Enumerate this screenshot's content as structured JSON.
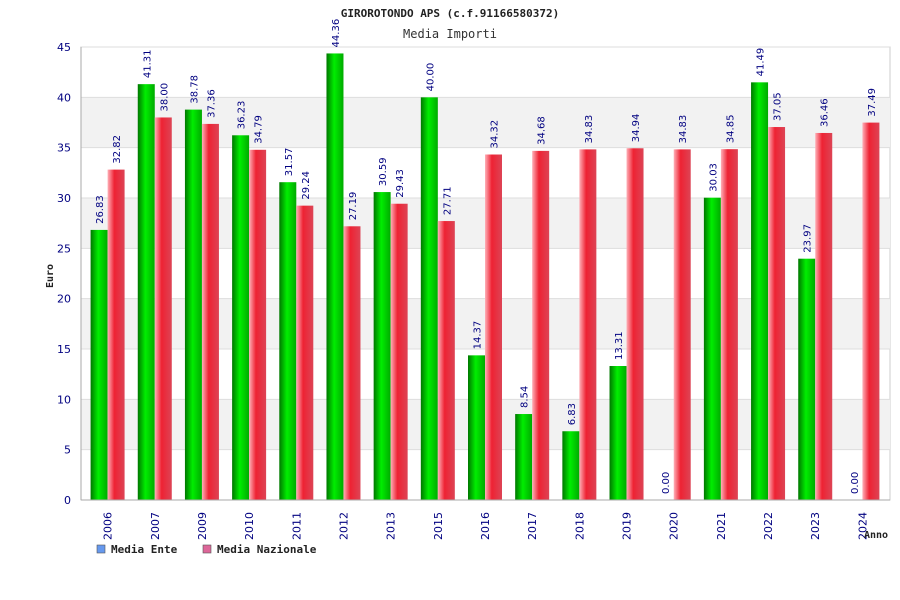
{
  "chart_data": {
    "type": "bar",
    "title": "GIROROTONDO APS (c.f.91166580372)",
    "subtitle": "Media Importi",
    "xlabel": "Anno",
    "ylabel": "Euro",
    "ylim": [
      0,
      45
    ],
    "yticks": [
      0,
      5,
      10,
      15,
      20,
      25,
      30,
      35,
      40,
      45
    ],
    "grid": true,
    "legend_position": "bottom-left",
    "categories": [
      "2006",
      "2007",
      "2009",
      "2010",
      "2011",
      "2012",
      "2013",
      "2015",
      "2016",
      "2017",
      "2018",
      "2019",
      "2020",
      "2021",
      "2022",
      "2023",
      "2024"
    ],
    "series": [
      {
        "name": "Media Ente",
        "color": "#00cc00",
        "values": [
          26.83,
          41.31,
          38.78,
          36.23,
          31.57,
          44.36,
          30.59,
          40.0,
          14.37,
          8.54,
          6.83,
          13.31,
          0.0,
          30.03,
          41.49,
          23.97,
          0.0
        ],
        "labels": [
          "26.83",
          "41.31",
          "38.78",
          "36.23",
          "31.57",
          "44.36",
          "30.59",
          "40.00",
          "14.37",
          "8.54",
          "6.83",
          "13.31",
          "0.00",
          "30.03",
          "41.49",
          "23.97",
          "0.00"
        ]
      },
      {
        "name": "Media Nazionale",
        "color": "#ee3344",
        "values": [
          32.82,
          38.0,
          37.36,
          34.79,
          29.24,
          27.19,
          29.43,
          27.71,
          34.32,
          34.68,
          34.83,
          34.94,
          34.83,
          34.85,
          37.05,
          36.46,
          37.49
        ],
        "labels": [
          "32.82",
          "38.00",
          "37.36",
          "34.79",
          "29.24",
          "27.19",
          "29.43",
          "27.71",
          "34.32",
          "34.68",
          "34.83",
          "34.94",
          "34.83",
          "34.85",
          "37.05",
          "36.46",
          "37.49"
        ]
      }
    ],
    "legend_colors": [
      "#6699ee",
      "#dd6699"
    ]
  }
}
